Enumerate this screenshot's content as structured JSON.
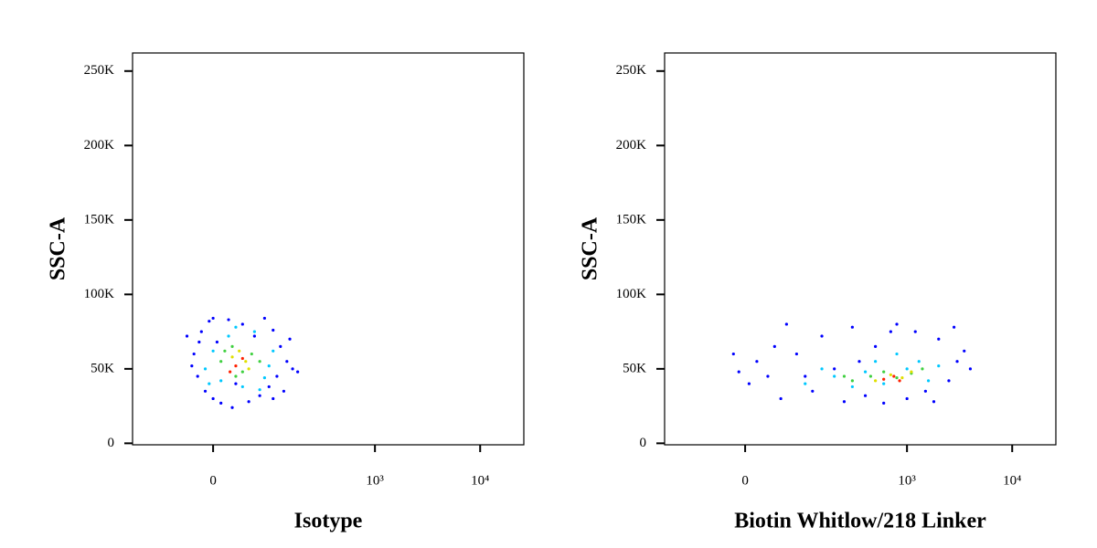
{
  "chart_data": [
    {
      "type": "scatter",
      "xlabel": "Isotype",
      "ylabel": "SSC-A",
      "xscale": "asinh",
      "xscale_cofactor": 58,
      "xlim": [
        -164,
        26000
      ],
      "ylim": [
        -1000,
        262144
      ],
      "xticks": [
        0,
        {
          "value": 1000,
          "label": "10³"
        },
        {
          "value": 10000,
          "label": "10⁴"
        }
      ],
      "yticks": [
        0,
        {
          "value": 50000,
          "label": "50K"
        },
        {
          "value": 100000,
          "label": "100K"
        },
        {
          "value": 150000,
          "label": "150K"
        },
        {
          "value": 200000,
          "label": "200K"
        },
        {
          "value": 250000,
          "label": "250K"
        }
      ],
      "series": [
        {
          "color": "#0000ff",
          "x": [
            -25,
            -20,
            -15,
            -10,
            -5,
            0,
            5,
            10,
            20,
            30,
            40,
            50,
            60,
            70,
            80,
            90,
            100,
            110,
            120,
            140,
            160,
            -28,
            150,
            130,
            -18,
            100,
            25,
            -35,
            180,
            0
          ],
          "y": [
            60000,
            45000,
            75000,
            35000,
            82000,
            30000,
            68000,
            27000,
            83000,
            40000,
            80000,
            28000,
            72000,
            32000,
            84000,
            38000,
            76000,
            45000,
            65000,
            55000,
            50000,
            52000,
            70000,
            35000,
            68000,
            30000,
            24000,
            72000,
            48000,
            84000
          ]
        },
        {
          "color": "#00c8ff",
          "x": [
            -10,
            0,
            10,
            20,
            40,
            60,
            80,
            100,
            90,
            -5,
            30,
            70
          ],
          "y": [
            50000,
            62000,
            42000,
            72000,
            38000,
            75000,
            44000,
            62000,
            52000,
            40000,
            78000,
            36000
          ]
        },
        {
          "color": "#40d040",
          "x": [
            10,
            25,
            40,
            55,
            30,
            70,
            15
          ],
          "y": [
            55000,
            65000,
            48000,
            60000,
            45000,
            55000,
            62000
          ]
        },
        {
          "color": "#e0e000",
          "x": [
            25,
            45,
            35,
            50
          ],
          "y": [
            58000,
            55000,
            62000,
            50000
          ]
        },
        {
          "color": "#ff2000",
          "x": [
            30,
            40,
            22
          ],
          "y": [
            52000,
            57000,
            48000
          ]
        }
      ]
    },
    {
      "type": "scatter",
      "xlabel": "Biotin Whitlow/218 Linker",
      "ylabel": "SSC-A",
      "xscale": "asinh",
      "xscale_cofactor": 58,
      "xlim": [
        -164,
        26000
      ],
      "ylim": [
        -1000,
        262144
      ],
      "xticks": [
        0,
        {
          "value": 1000,
          "label": "10³"
        },
        {
          "value": 10000,
          "label": "10⁴"
        }
      ],
      "yticks": [
        0,
        {
          "value": 50000,
          "label": "50K"
        },
        {
          "value": 100000,
          "label": "100K"
        },
        {
          "value": 150000,
          "label": "150K"
        },
        {
          "value": 200000,
          "label": "200K"
        },
        {
          "value": 250000,
          "label": "250K"
        }
      ],
      "series": [
        {
          "color": "#0000ff",
          "x": [
            5,
            15,
            30,
            50,
            60,
            80,
            120,
            150,
            200,
            250,
            300,
            400,
            500,
            600,
            800,
            1000,
            1200,
            1500,
            2000,
            2500,
            3000,
            4000,
            3500,
            100,
            40,
            700,
            1800,
            350,
            -15,
            -8,
            2800
          ],
          "y": [
            40000,
            55000,
            45000,
            30000,
            80000,
            60000,
            35000,
            72000,
            50000,
            28000,
            78000,
            32000,
            65000,
            27000,
            80000,
            30000,
            75000,
            35000,
            70000,
            42000,
            55000,
            50000,
            62000,
            45000,
            65000,
            75000,
            28000,
            55000,
            60000,
            48000,
            78000
          ]
        },
        {
          "color": "#00c8ff",
          "x": [
            100,
            200,
            300,
            400,
            600,
            1000,
            1300,
            1600,
            2000,
            800,
            500,
            150
          ],
          "y": [
            40000,
            45000,
            38000,
            48000,
            40000,
            50000,
            55000,
            42000,
            52000,
            60000,
            55000,
            50000
          ]
        },
        {
          "color": "#40d040",
          "x": [
            300,
            450,
            600,
            800,
            1100,
            1400,
            250
          ],
          "y": [
            42000,
            45000,
            48000,
            44000,
            47000,
            50000,
            45000
          ]
        },
        {
          "color": "#e0e000",
          "x": [
            500,
            700,
            900,
            1100
          ],
          "y": [
            42000,
            46000,
            44000,
            48000
          ]
        },
        {
          "color": "#ff2000",
          "x": [
            600,
            750,
            850
          ],
          "y": [
            43000,
            45000,
            42000
          ]
        }
      ]
    }
  ]
}
